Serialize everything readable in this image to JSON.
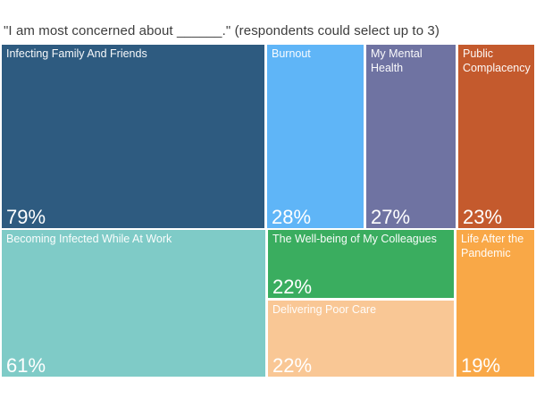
{
  "title": "\"I am most concerned about ______.\" (respondents could select up to 3)",
  "chart_data": {
    "type": "treemap",
    "title": "\"I am most concerned about ______.\" (respondents could select up to 3)",
    "value_unit": "%",
    "legend": "none",
    "items": [
      {
        "label": "Infecting Family And Friends",
        "value": 79,
        "display": "79%",
        "color": "#2e5b80"
      },
      {
        "label": "Burnout",
        "value": 28,
        "display": "28%",
        "color": "#5fb5f7"
      },
      {
        "label": "My Mental Health",
        "value": 27,
        "display": "27%",
        "color": "#6f73a2"
      },
      {
        "label": "Public Complacency",
        "value": 23,
        "display": "23%",
        "color": "#c45a2d"
      },
      {
        "label": "Becoming Infected While At Work",
        "value": 61,
        "display": "61%",
        "color": "#7fcbc7"
      },
      {
        "label": "The Well-being of My Colleagues",
        "value": 22,
        "display": "22%",
        "color": "#3aad5f"
      },
      {
        "label": "Delivering Poor Care",
        "value": 22,
        "display": "22%",
        "color": "#f9c795"
      },
      {
        "label": "Life After the Pandemic",
        "value": 19,
        "display": "19%",
        "color": "#f9a847"
      }
    ]
  }
}
